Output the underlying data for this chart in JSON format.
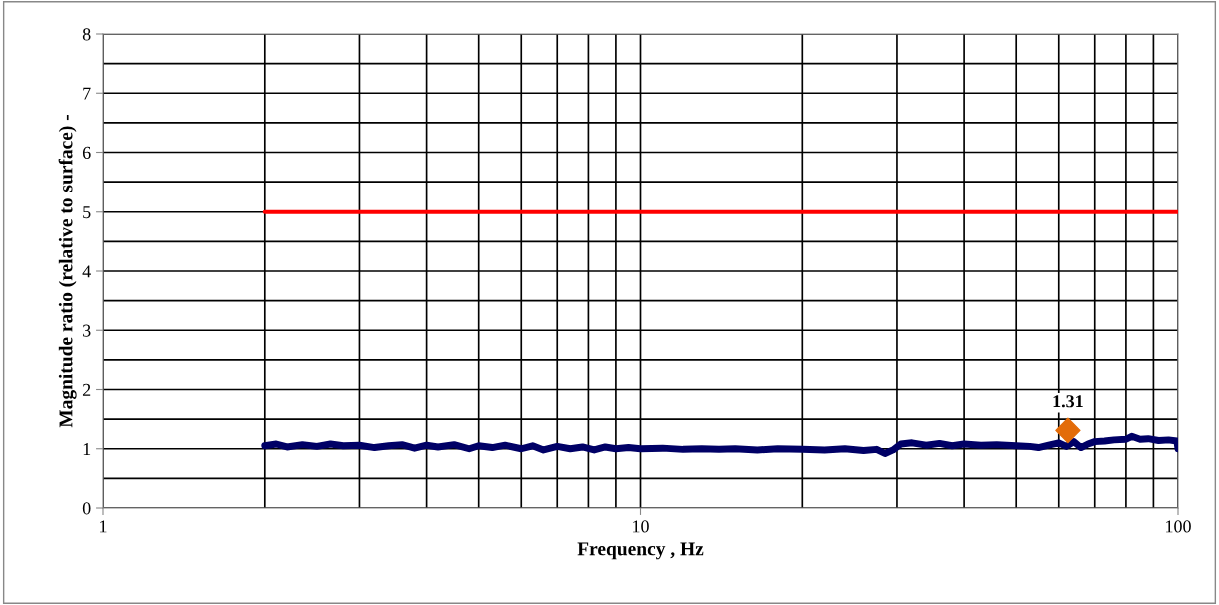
{
  "chart_data": {
    "type": "line",
    "xlabel": "Frequency , Hz",
    "ylabel": "Magnitude ratio (relative to surface) -",
    "log": "x",
    "xlim": [
      1,
      100
    ],
    "xticks": [
      1,
      10,
      100
    ],
    "ylim": [
      0,
      8
    ],
    "yticks": [
      0,
      1,
      2,
      3,
      4,
      5,
      6,
      7,
      8
    ],
    "grid": true,
    "series": [
      {
        "color": "#000066",
        "x": [
          2,
          2.1,
          2.2,
          2.35,
          2.5,
          2.65,
          2.8,
          3,
          3.2,
          3.4,
          3.6,
          3.8,
          4,
          4.2,
          4.5,
          4.8,
          5,
          5.3,
          5.6,
          6,
          6.3,
          6.6,
          7,
          7.4,
          7.8,
          8.2,
          8.6,
          9,
          9.5,
          10,
          11,
          12,
          13,
          14,
          15,
          16.5,
          18,
          20,
          22,
          24,
          26,
          27.5,
          28.5,
          29.5,
          30.5,
          32,
          34,
          36,
          38,
          40,
          43,
          46,
          50,
          53,
          55,
          58,
          60,
          62,
          64,
          66,
          68,
          70,
          73,
          76,
          80,
          82,
          85,
          88,
          92,
          96,
          99.5,
          100
        ],
        "values": [
          1.05,
          1.08,
          1.03,
          1.07,
          1.04,
          1.08,
          1.05,
          1.06,
          1.02,
          1.05,
          1.07,
          1.01,
          1.06,
          1.03,
          1.07,
          1.0,
          1.05,
          1.02,
          1.06,
          1.0,
          1.05,
          0.98,
          1.04,
          1.0,
          1.03,
          0.98,
          1.03,
          1.0,
          1.02,
          1.0,
          1.01,
          0.99,
          1.0,
          0.99,
          1.0,
          0.98,
          1.0,
          0.99,
          0.98,
          1.0,
          0.97,
          0.99,
          0.92,
          0.98,
          1.08,
          1.1,
          1.06,
          1.09,
          1.05,
          1.08,
          1.06,
          1.07,
          1.05,
          1.04,
          1.02,
          1.07,
          1.1,
          1.04,
          1.12,
          1.02,
          1.08,
          1.12,
          1.13,
          1.15,
          1.16,
          1.21,
          1.16,
          1.17,
          1.14,
          1.15,
          1.13,
          1.0
        ]
      },
      {
        "type": "line",
        "color": "#ff0000",
        "x": [
          2,
          100
        ],
        "values": [
          5,
          5
        ]
      },
      {
        "type": "scatter",
        "color": "#e36c09",
        "marker": "diamond",
        "x": [
          62.4
        ],
        "values": [
          1.31
        ],
        "value_labels": [
          "1.31"
        ]
      }
    ]
  }
}
